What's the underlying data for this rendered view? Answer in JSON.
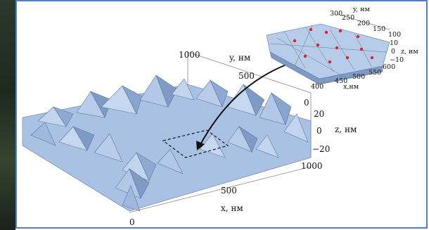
{
  "main_plot": {
    "y_axis": {
      "label": "y, нм",
      "ticks": [
        "1000",
        "500",
        "0"
      ]
    },
    "z_axis": {
      "label": "z, нм",
      "ticks": [
        "20",
        "0",
        "−20"
      ]
    },
    "x_axis": {
      "label": "x, нм",
      "ticks": [
        "1000",
        "500",
        "0"
      ]
    }
  },
  "inset": {
    "y_axis": {
      "label": "y, нм",
      "ticks": [
        "300",
        "250",
        "200",
        "150",
        "100"
      ]
    },
    "z_axis": {
      "label": "z, нм",
      "ticks": [
        "10",
        "0",
        "−10"
      ]
    },
    "x_axis": {
      "label": "x,нм",
      "ticks": [
        "600",
        "550",
        "500",
        "450",
        "400"
      ]
    },
    "marker_color": "#e0202a"
  },
  "colors": {
    "surface": "#a9c2e4",
    "surface_dark": "#7f9ac4",
    "frame": "#4f7fc4"
  }
}
